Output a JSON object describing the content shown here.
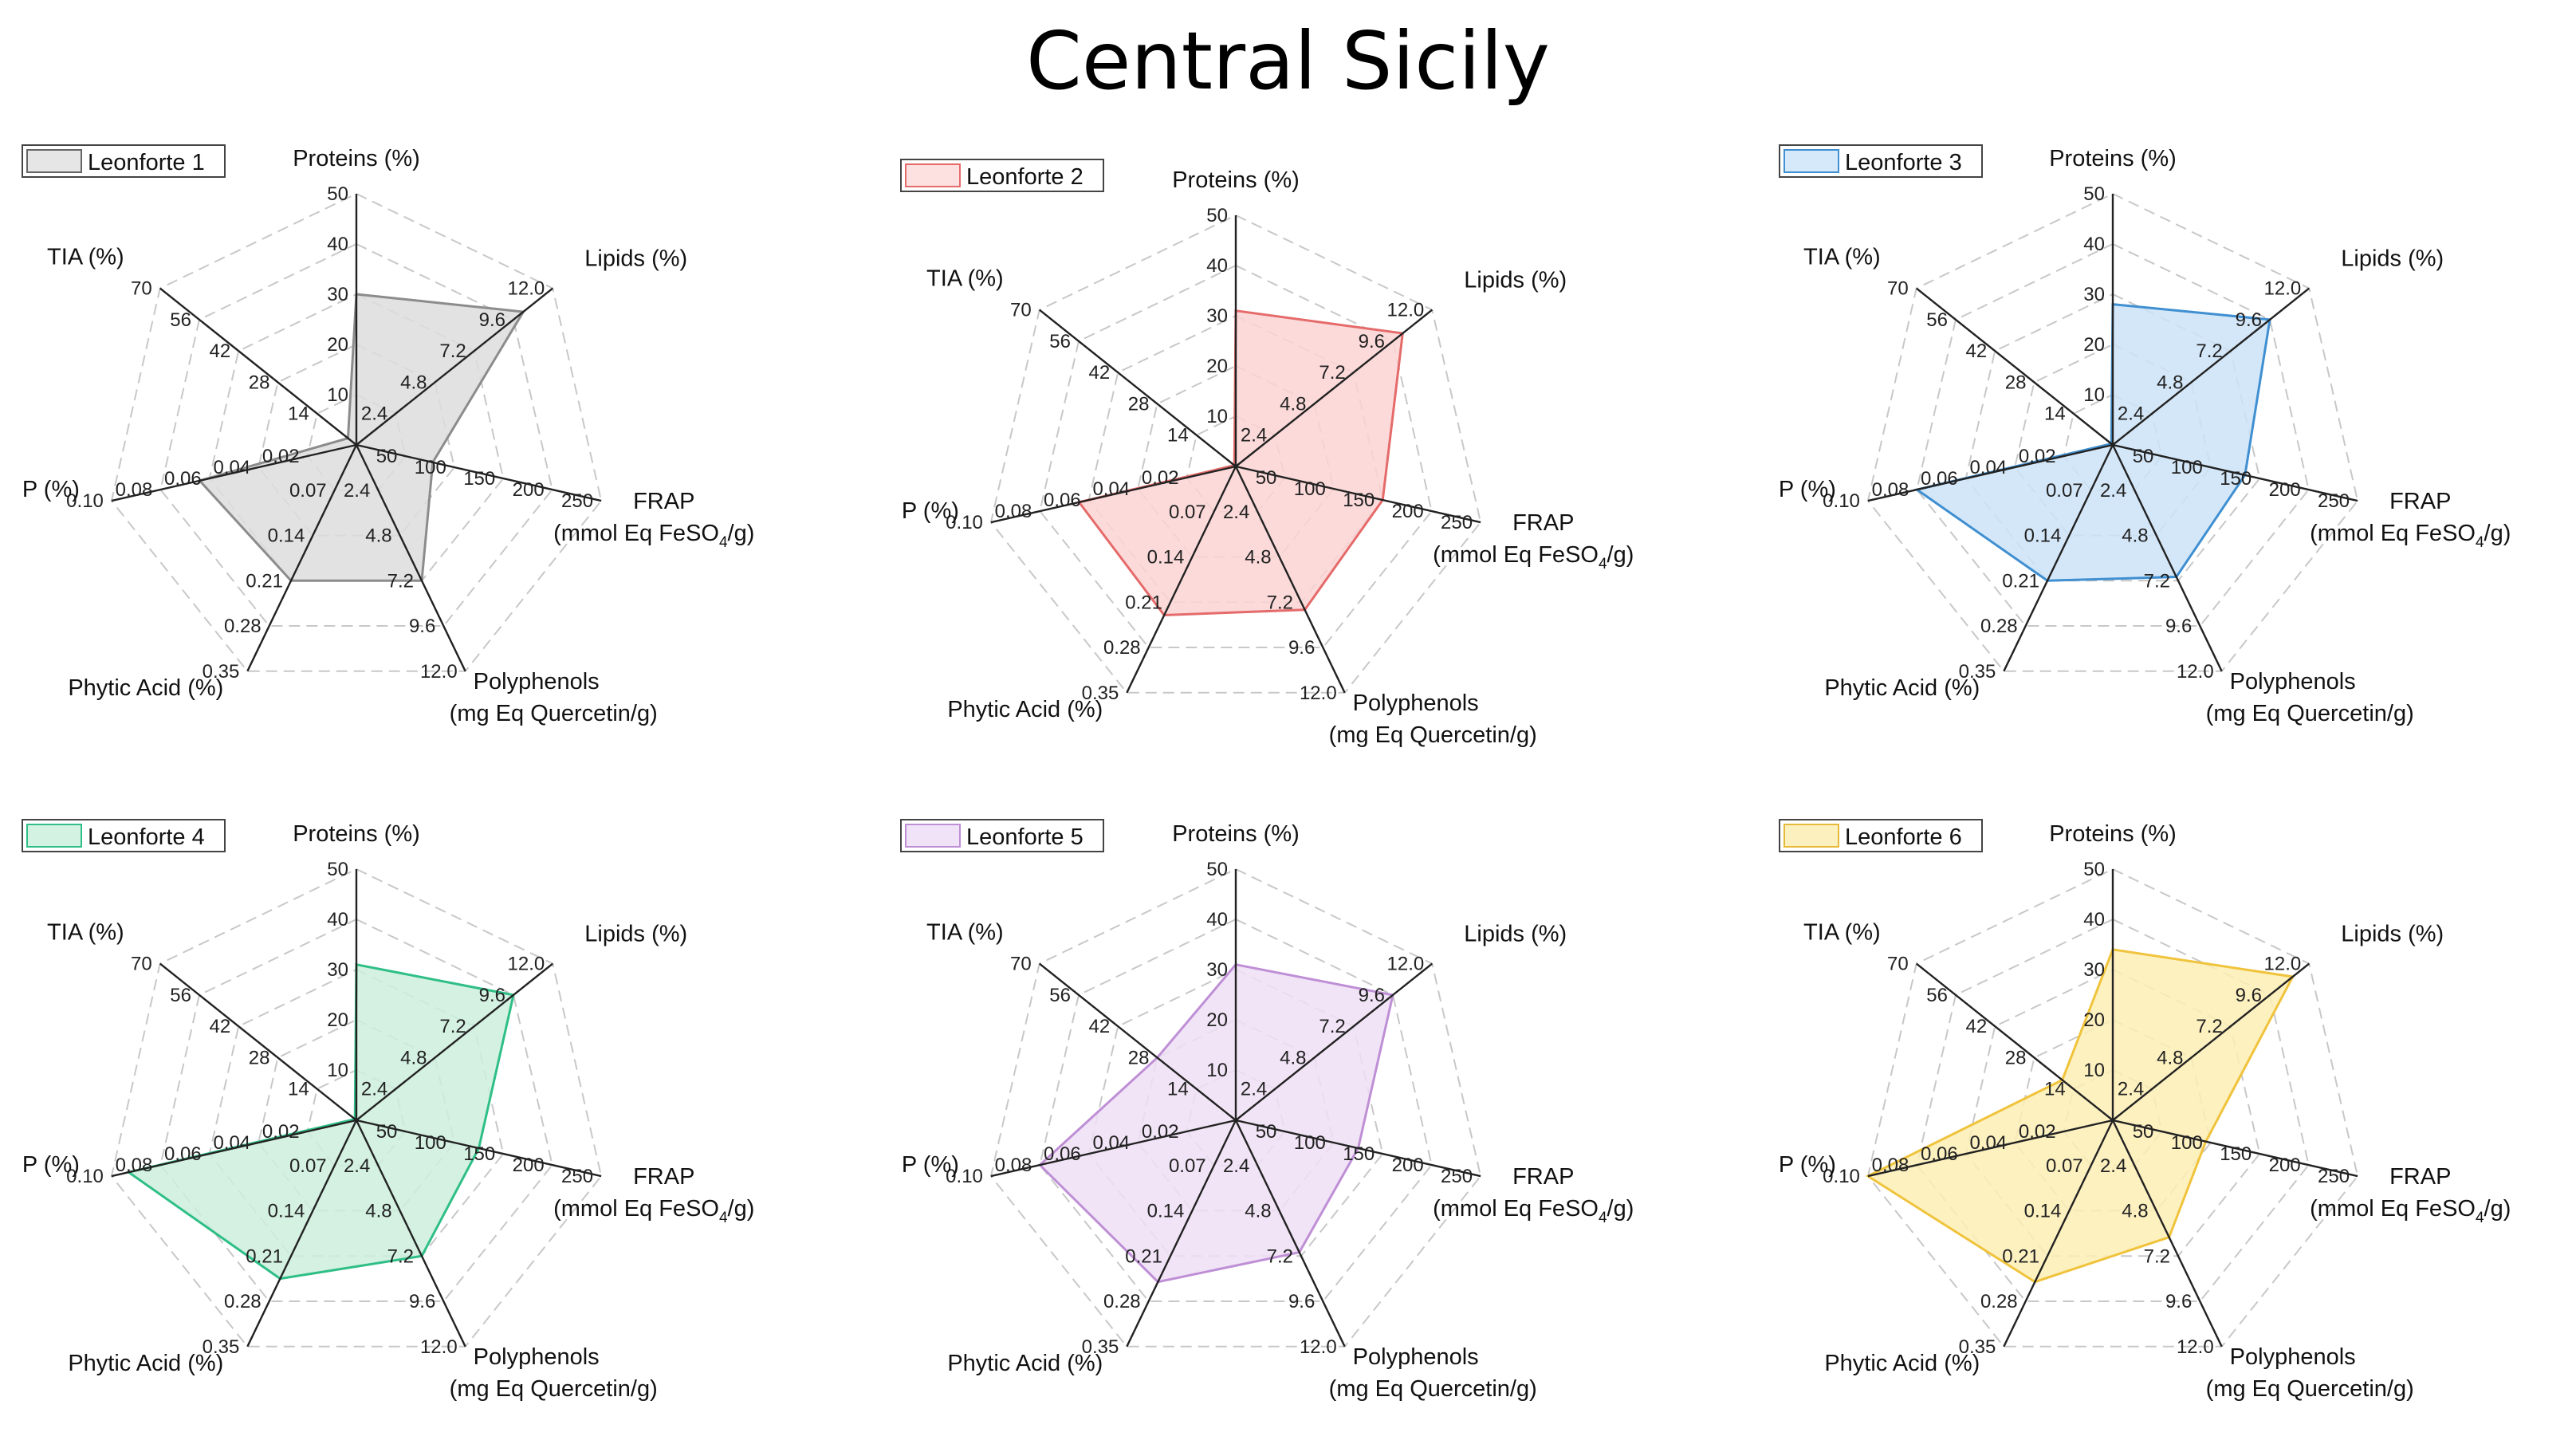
{
  "title": "Central Sicily",
  "chart_data": [
    {
      "type": "radar",
      "series_name": "Leonforte 1",
      "colors": {
        "fill": "#dddddd",
        "stroke": "#8c8c8c",
        "legend_fill": "#e6e6e6",
        "legend_stroke": "#666666"
      },
      "axes": [
        {
          "label": "Proteins (%)",
          "ticks": [
            "10",
            "20",
            "30",
            "40",
            "50"
          ],
          "max": 50,
          "value": 30
        },
        {
          "label": "Lipids (%)",
          "ticks": [
            "2.4",
            "4.8",
            "7.2",
            "9.6",
            "12.0"
          ],
          "max": 12,
          "value": 10.2
        },
        {
          "label": "FRAP",
          "label2": "(mmol Eq FeSO",
          "sub": "4",
          "label2_end": "/g)",
          "ticks": [
            "50",
            "100",
            "150",
            "200",
            "250"
          ],
          "max": 250,
          "value": 78
        },
        {
          "label": "Polyphenols",
          "label2": "(mg Eq Quercetin/g)",
          "ticks": [
            "2.4",
            "4.8",
            "7.2",
            "9.6",
            "12.0"
          ],
          "max": 12,
          "value": 7.2
        },
        {
          "label": "Phytic Acid (%)",
          "ticks": [
            "0.07",
            "0.14",
            "0.21",
            "0.28",
            "0.35"
          ],
          "max": 0.35,
          "value": 0.21
        },
        {
          "label": "P (%)",
          "ticks": [
            "0.02",
            "0.04",
            "0.06",
            "0.08",
            "0.10"
          ],
          "max": 0.1,
          "value": 0.064
        },
        {
          "label": "TIA (%)",
          "ticks": [
            "14",
            "28",
            "42",
            "56",
            "70"
          ],
          "max": 70,
          "value": 3
        }
      ]
    },
    {
      "type": "radar",
      "series_name": "Leonforte 2",
      "colors": {
        "fill": "#fbd3d3",
        "stroke": "#e56b6b",
        "legend_fill": "#fde0e0",
        "legend_stroke": "#e56b6b"
      },
      "axes": [
        {
          "label": "Proteins (%)",
          "ticks": [
            "10",
            "20",
            "30",
            "40",
            "50"
          ],
          "max": 50,
          "value": 31
        },
        {
          "label": "Lipids (%)",
          "ticks": [
            "2.4",
            "4.8",
            "7.2",
            "9.6",
            "12.0"
          ],
          "max": 12,
          "value": 10.2
        },
        {
          "label": "FRAP",
          "label2": "(mmol Eq FeSO",
          "sub": "4",
          "label2_end": "/g)",
          "ticks": [
            "50",
            "100",
            "150",
            "200",
            "250"
          ],
          "max": 250,
          "value": 150
        },
        {
          "label": "Polyphenols",
          "label2": "(mg Eq Quercetin/g)",
          "ticks": [
            "2.4",
            "4.8",
            "7.2",
            "9.6",
            "12.0"
          ],
          "max": 12,
          "value": 7.6
        },
        {
          "label": "Phytic Acid (%)",
          "ticks": [
            "0.07",
            "0.14",
            "0.21",
            "0.28",
            "0.35"
          ],
          "max": 0.35,
          "value": 0.23
        },
        {
          "label": "P (%)",
          "ticks": [
            "0.02",
            "0.04",
            "0.06",
            "0.08",
            "0.10"
          ],
          "max": 0.1,
          "value": 0.064
        },
        {
          "label": "TIA (%)",
          "ticks": [
            "14",
            "28",
            "42",
            "56",
            "70"
          ],
          "max": 70,
          "value": 0.5
        }
      ]
    },
    {
      "type": "radar",
      "series_name": "Leonforte 3",
      "colors": {
        "fill": "#cce3f7",
        "stroke": "#3f8fd1",
        "legend_fill": "#d6e9fa",
        "legend_stroke": "#3f8fd1"
      },
      "axes": [
        {
          "label": "Proteins (%)",
          "ticks": [
            "10",
            "20",
            "30",
            "40",
            "50"
          ],
          "max": 50,
          "value": 28
        },
        {
          "label": "Lipids (%)",
          "ticks": [
            "2.4",
            "4.8",
            "7.2",
            "9.6",
            "12.0"
          ],
          "max": 12,
          "value": 9.6
        },
        {
          "label": "FRAP",
          "label2": "(mmol Eq FeSO",
          "sub": "4",
          "label2_end": "/g)",
          "ticks": [
            "50",
            "100",
            "150",
            "200",
            "250"
          ],
          "max": 250,
          "value": 135
        },
        {
          "label": "Polyphenols",
          "label2": "(mg Eq Quercetin/g)",
          "ticks": [
            "2.4",
            "4.8",
            "7.2",
            "9.6",
            "12.0"
          ],
          "max": 12,
          "value": 7.0
        },
        {
          "label": "Phytic Acid (%)",
          "ticks": [
            "0.07",
            "0.14",
            "0.21",
            "0.28",
            "0.35"
          ],
          "max": 0.35,
          "value": 0.21
        },
        {
          "label": "P (%)",
          "ticks": [
            "0.02",
            "0.04",
            "0.06",
            "0.08",
            "0.10"
          ],
          "max": 0.1,
          "value": 0.08
        },
        {
          "label": "TIA (%)",
          "ticks": [
            "14",
            "28",
            "42",
            "56",
            "70"
          ],
          "max": 70,
          "value": 0.5
        }
      ]
    },
    {
      "type": "radar",
      "series_name": "Leonforte 4",
      "colors": {
        "fill": "#cdeedd",
        "stroke": "#2fbf86",
        "legend_fill": "#d4f2e2",
        "legend_stroke": "#2fbf86"
      },
      "axes": [
        {
          "label": "Proteins (%)",
          "ticks": [
            "10",
            "20",
            "30",
            "40",
            "50"
          ],
          "max": 50,
          "value": 31
        },
        {
          "label": "Lipids (%)",
          "ticks": [
            "2.4",
            "4.8",
            "7.2",
            "9.6",
            "12.0"
          ],
          "max": 12,
          "value": 9.6
        },
        {
          "label": "FRAP",
          "label2": "(mmol Eq FeSO",
          "sub": "4",
          "label2_end": "/g)",
          "ticks": [
            "50",
            "100",
            "150",
            "200",
            "250"
          ],
          "max": 250,
          "value": 125
        },
        {
          "label": "Polyphenols",
          "label2": "(mg Eq Quercetin/g)",
          "ticks": [
            "2.4",
            "4.8",
            "7.2",
            "9.6",
            "12.0"
          ],
          "max": 12,
          "value": 7.2
        },
        {
          "label": "Phytic Acid (%)",
          "ticks": [
            "0.07",
            "0.14",
            "0.21",
            "0.28",
            "0.35"
          ],
          "max": 0.35,
          "value": 0.245
        },
        {
          "label": "P (%)",
          "ticks": [
            "0.02",
            "0.04",
            "0.06",
            "0.08",
            "0.10"
          ],
          "max": 0.1,
          "value": 0.093
        },
        {
          "label": "TIA (%)",
          "ticks": [
            "14",
            "28",
            "42",
            "56",
            "70"
          ],
          "max": 70,
          "value": 0.5
        }
      ]
    },
    {
      "type": "radar",
      "series_name": "Leonforte 5",
      "colors": {
        "fill": "#efdff5",
        "stroke": "#bf8fd6",
        "legend_fill": "#f1e3f7",
        "legend_stroke": "#bf8fd6"
      },
      "axes": [
        {
          "label": "Proteins (%)",
          "ticks": [
            "10",
            "20",
            "30",
            "40",
            "50"
          ],
          "max": 50,
          "value": 31
        },
        {
          "label": "Lipids (%)",
          "ticks": [
            "2.4",
            "4.8",
            "7.2",
            "9.6",
            "12.0"
          ],
          "max": 12,
          "value": 9.6
        },
        {
          "label": "FRAP",
          "label2": "(mmol Eq FeSO",
          "sub": "4",
          "label2_end": "/g)",
          "ticks": [
            "50",
            "100",
            "150",
            "200",
            "250"
          ],
          "max": 250,
          "value": 125
        },
        {
          "label": "Polyphenols",
          "label2": "(mg Eq Quercetin/g)",
          "ticks": [
            "2.4",
            "4.8",
            "7.2",
            "9.6",
            "12.0"
          ],
          "max": 12,
          "value": 7.0
        },
        {
          "label": "Phytic Acid (%)",
          "ticks": [
            "0.07",
            "0.14",
            "0.21",
            "0.28",
            "0.35"
          ],
          "max": 0.35,
          "value": 0.25
        },
        {
          "label": "P (%)",
          "ticks": [
            "0.02",
            "0.04",
            "0.06",
            "0.08",
            "0.10"
          ],
          "max": 0.1,
          "value": 0.08
        },
        {
          "label": "TIA (%)",
          "ticks": [
            "14",
            "28",
            "42",
            "56",
            "70"
          ],
          "max": 70,
          "value": 28
        }
      ]
    },
    {
      "type": "radar",
      "series_name": "Leonforte 6",
      "colors": {
        "fill": "#fdeeb5",
        "stroke": "#f0c33c",
        "legend_fill": "#fdf0bf",
        "legend_stroke": "#e6b93a"
      },
      "axes": [
        {
          "label": "Proteins (%)",
          "ticks": [
            "10",
            "20",
            "30",
            "40",
            "50"
          ],
          "max": 50,
          "value": 34
        },
        {
          "label": "Lipids (%)",
          "ticks": [
            "2.4",
            "4.8",
            "7.2",
            "9.6",
            "12.0"
          ],
          "max": 12,
          "value": 11.0
        },
        {
          "label": "FRAP",
          "label2": "(mmol Eq FeSO",
          "sub": "4",
          "label2_end": "/g)",
          "ticks": [
            "50",
            "100",
            "150",
            "200",
            "250"
          ],
          "max": 250,
          "value": 95
        },
        {
          "label": "Polyphenols",
          "label2": "(mg Eq Quercetin/g)",
          "ticks": [
            "2.4",
            "4.8",
            "7.2",
            "9.6",
            "12.0"
          ],
          "max": 12,
          "value": 6.2
        },
        {
          "label": "Phytic Acid (%)",
          "ticks": [
            "0.07",
            "0.14",
            "0.21",
            "0.28",
            "0.35"
          ],
          "max": 0.35,
          "value": 0.25
        },
        {
          "label": "P (%)",
          "ticks": [
            "0.02",
            "0.04",
            "0.06",
            "0.08",
            "0.10"
          ],
          "max": 0.1,
          "value": 0.1
        },
        {
          "label": "TIA (%)",
          "ticks": [
            "14",
            "28",
            "42",
            "56",
            "70"
          ],
          "max": 70,
          "value": 18
        }
      ]
    }
  ]
}
